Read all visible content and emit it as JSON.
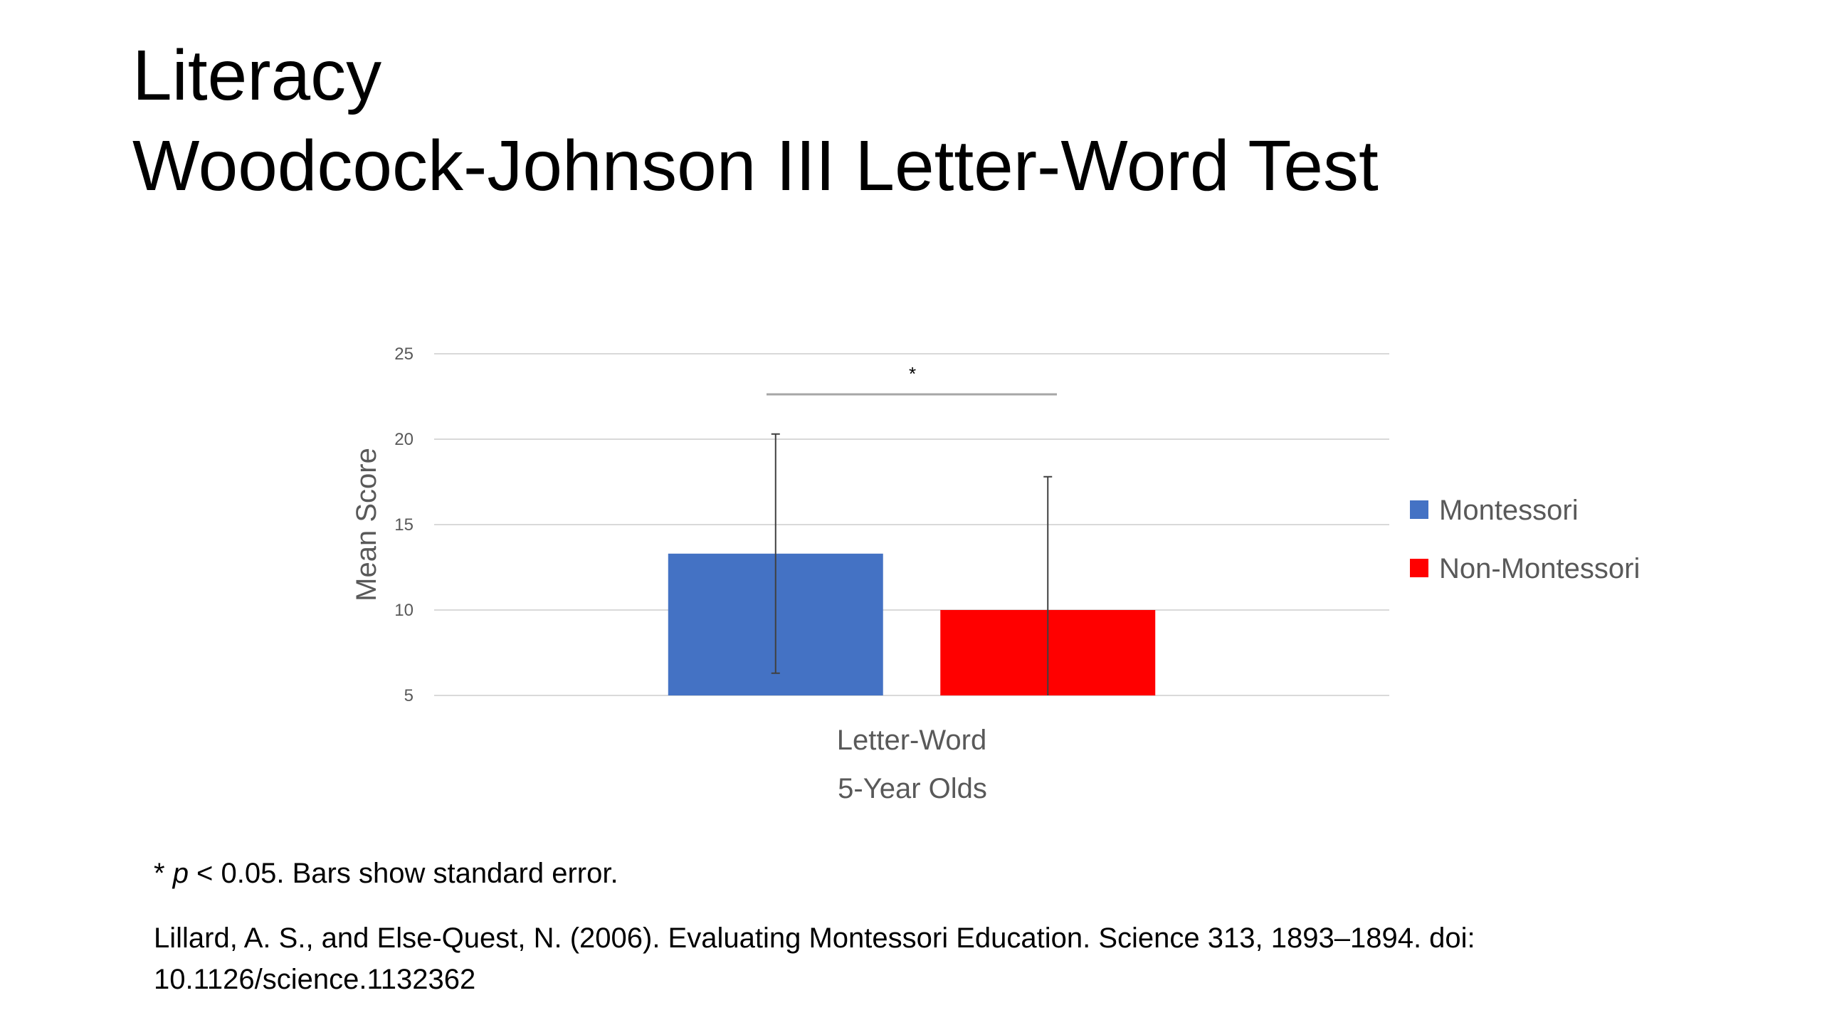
{
  "slide": {
    "title": [
      "Literacy",
      "Woodcock-Johnson III Letter-Word Test"
    ],
    "footnote": [
      "* ",
      "p",
      " < 0.05. Bars show standard error."
    ],
    "citation": [
      "Lillard, A. S., and Else-Quest, N. (2006). Evaluating Montessori Education. Science 313, 1893–1894. doi:",
      "10.1126/science.1132362"
    ]
  },
  "chart_data": {
    "type": "bar",
    "ylabel": "Mean Score",
    "xlabel": "5-Year Olds",
    "categories": [
      "Letter-Word"
    ],
    "series": [
      {
        "name": "Montessori",
        "color": "#4472c4",
        "values": [
          13.3
        ],
        "errors": [
          7.0
        ]
      },
      {
        "name": "Non-Montessori",
        "color": "#ff0000",
        "values": [
          10.0
        ],
        "errors": [
          7.8
        ]
      }
    ],
    "ylim": [
      5,
      25
    ],
    "yticks": [
      5,
      10,
      15,
      20,
      25
    ],
    "grid": true,
    "annotation": "*",
    "legend": "right"
  }
}
